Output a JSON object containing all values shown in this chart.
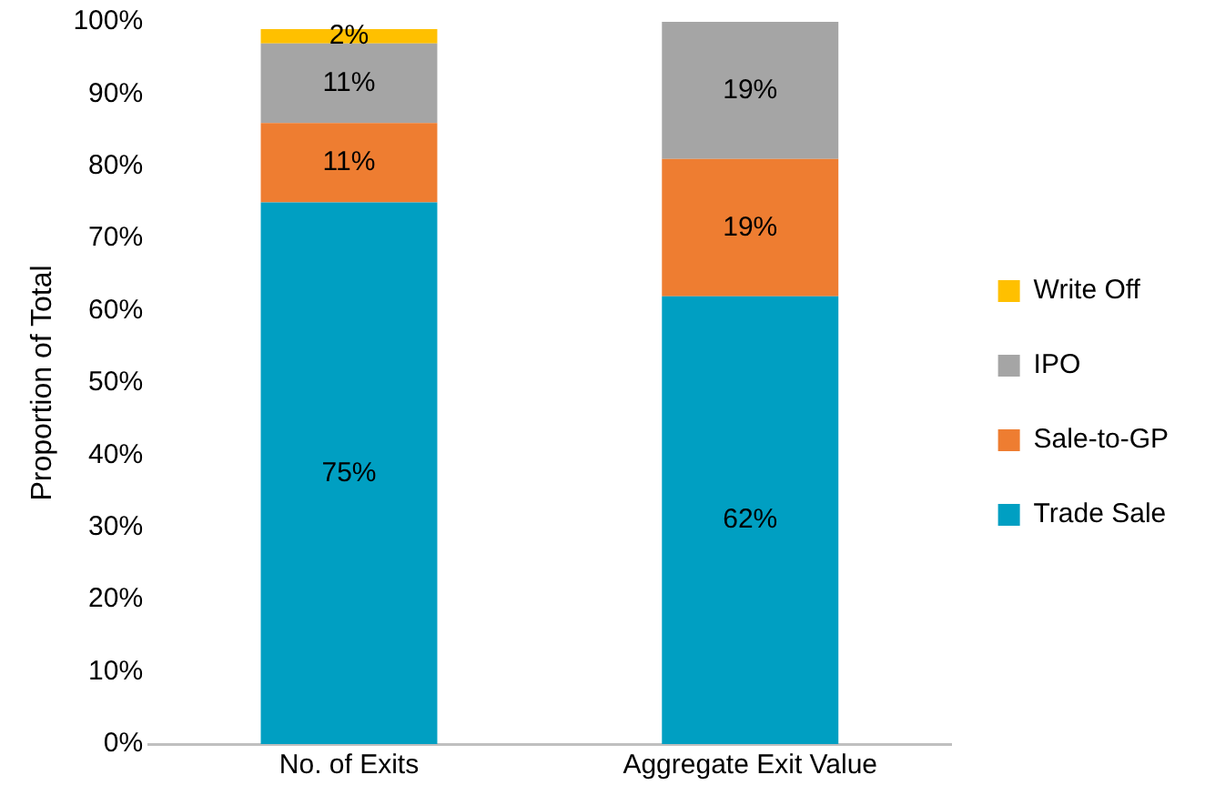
{
  "chart_data": {
    "type": "bar",
    "stacked": true,
    "ylabel": "Proportion of Total",
    "categories": [
      "No. of Exits",
      "Aggregate Exit Value"
    ],
    "series": [
      {
        "name": "Trade Sale",
        "color": "#009fc2",
        "values": [
          75,
          62
        ],
        "value_labels": [
          "75%",
          "62%"
        ]
      },
      {
        "name": "Sale-to-GP",
        "color": "#ee7d31",
        "values": [
          11,
          19
        ],
        "value_labels": [
          "11%",
          "19%"
        ]
      },
      {
        "name": "IPO",
        "color": "#a5a5a5",
        "values": [
          11,
          19
        ],
        "value_labels": [
          "11%",
          "19%"
        ]
      },
      {
        "name": "Write Off",
        "color": "#ffc000",
        "values": [
          2,
          null
        ],
        "value_labels": [
          "2%",
          null
        ]
      }
    ],
    "ylim": [
      0,
      100
    ],
    "yticks": [
      {
        "value": 0,
        "label": "0%"
      },
      {
        "value": 10,
        "label": "10%"
      },
      {
        "value": 20,
        "label": "20%"
      },
      {
        "value": 30,
        "label": "30%"
      },
      {
        "value": 40,
        "label": "40%"
      },
      {
        "value": 50,
        "label": "50%"
      },
      {
        "value": 60,
        "label": "60%"
      },
      {
        "value": 70,
        "label": "70%"
      },
      {
        "value": 80,
        "label": "80%"
      },
      {
        "value": 90,
        "label": "90%"
      },
      {
        "value": 100,
        "label": "100%"
      }
    ],
    "grid": false,
    "legend": "right"
  }
}
